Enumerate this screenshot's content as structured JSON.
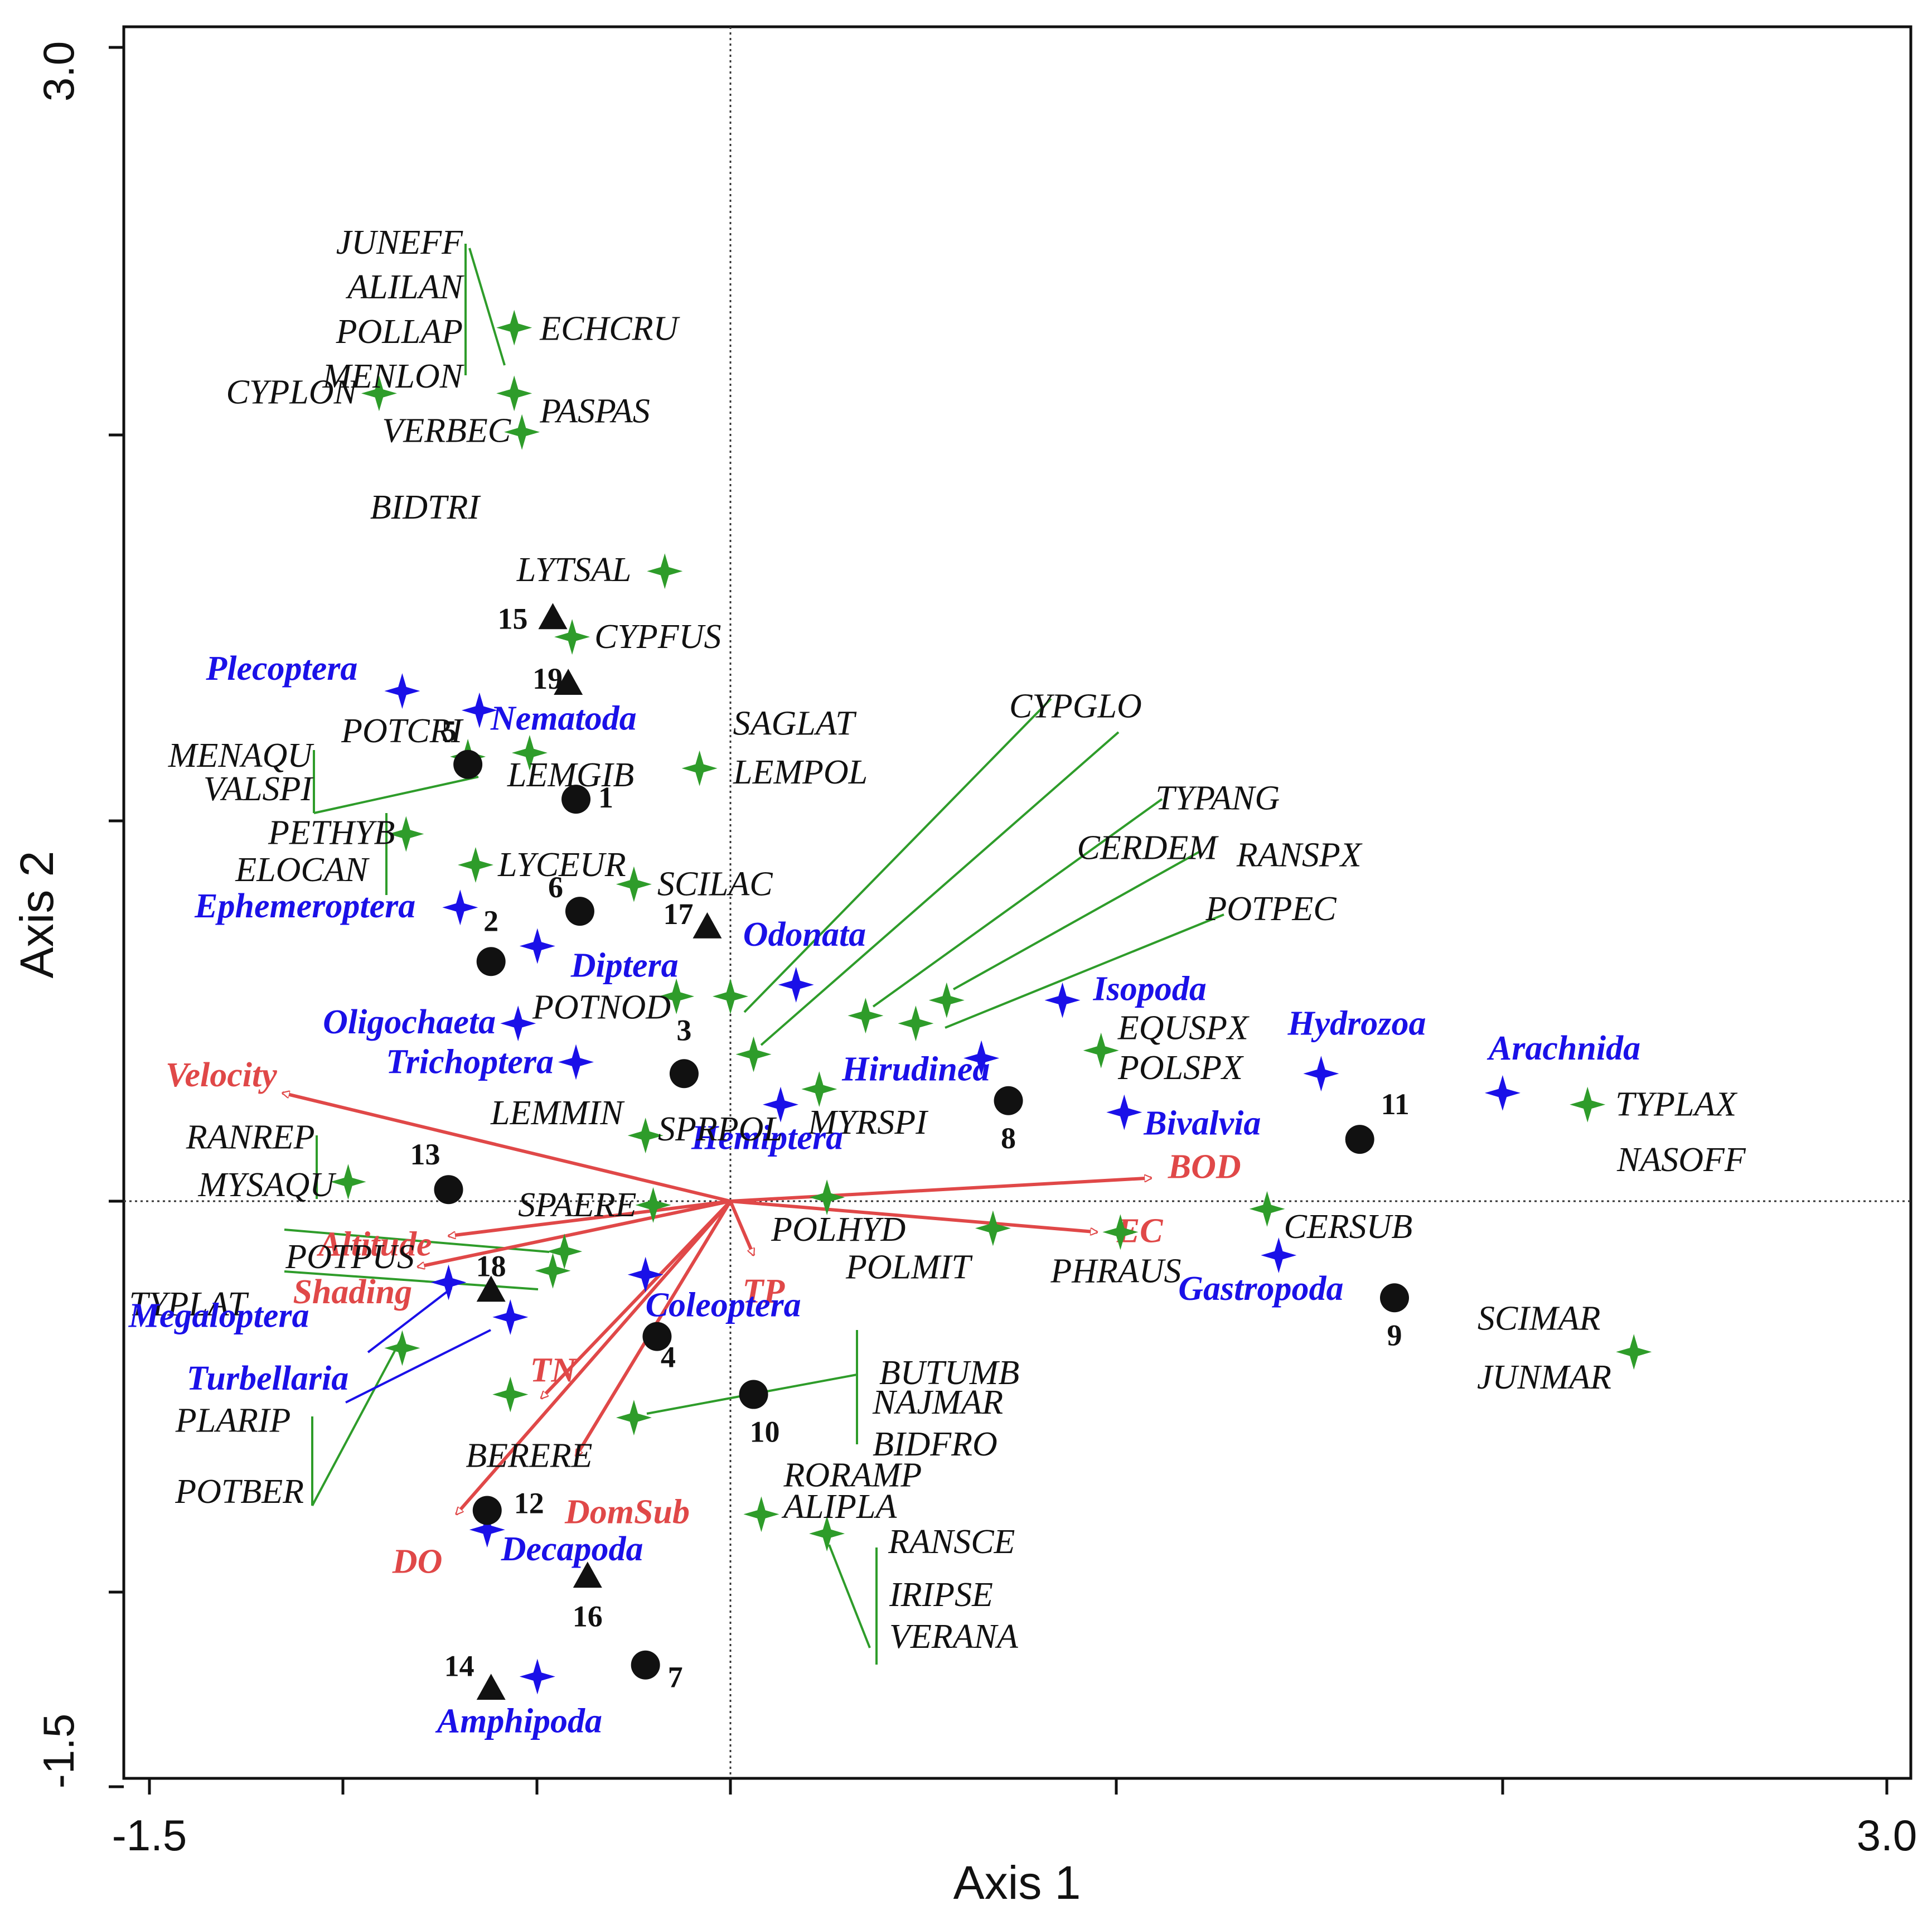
{
  "colors": {
    "plant": "#2e9c2a",
    "taxon": "#1a10e8",
    "env": "#e04848",
    "site": "#111111",
    "axis": "#111111"
  },
  "chart_data": {
    "type": "scatter",
    "xlabel": "Axis 1",
    "ylabel": "Axis 2",
    "xlim": [
      -1.5,
      3.0
    ],
    "ylim": [
      -1.5,
      3.0
    ],
    "xticklabels": [
      "-1.5",
      "3.0"
    ],
    "yticklabels": [
      "3.0",
      "-1.5"
    ],
    "reference_lines": {
      "x": 0,
      "y": 0,
      "style": "dotted"
    },
    "sites": [
      {
        "label": "1",
        "x": -0.4,
        "y": 1.04,
        "shape": "circle"
      },
      {
        "label": "2",
        "x": -0.62,
        "y": 0.62,
        "shape": "circle"
      },
      {
        "label": "3",
        "x": -0.12,
        "y": 0.33,
        "shape": "circle"
      },
      {
        "label": "4",
        "x": -0.19,
        "y": -0.35,
        "shape": "circle"
      },
      {
        "label": "5",
        "x": -0.68,
        "y": 1.13,
        "shape": "circle"
      },
      {
        "label": "6",
        "x": -0.39,
        "y": 0.75,
        "shape": "circle"
      },
      {
        "label": "7",
        "x": -0.22,
        "y": -1.2,
        "shape": "circle"
      },
      {
        "label": "8",
        "x": 0.72,
        "y": 0.26,
        "shape": "circle"
      },
      {
        "label": "9",
        "x": 1.72,
        "y": -0.25,
        "shape": "circle"
      },
      {
        "label": "10",
        "x": 0.06,
        "y": -0.5,
        "shape": "circle"
      },
      {
        "label": "11",
        "x": 1.63,
        "y": 0.16,
        "shape": "circle"
      },
      {
        "label": "12",
        "x": -0.63,
        "y": -0.8,
        "shape": "circle"
      },
      {
        "label": "13",
        "x": -0.73,
        "y": 0.03,
        "shape": "circle"
      },
      {
        "label": "14",
        "x": -0.62,
        "y": -1.26,
        "shape": "triangle"
      },
      {
        "label": "15",
        "x": -0.46,
        "y": 1.51,
        "shape": "triangle"
      },
      {
        "label": "16",
        "x": -0.37,
        "y": -0.97,
        "shape": "triangle"
      },
      {
        "label": "17",
        "x": -0.06,
        "y": 0.71,
        "shape": "triangle"
      },
      {
        "label": "18",
        "x": -0.62,
        "y": -0.23,
        "shape": "triangle"
      },
      {
        "label": "19",
        "x": -0.42,
        "y": 1.34,
        "shape": "triangle"
      }
    ],
    "taxa": [
      {
        "label": "Plecoptera",
        "x": -0.85,
        "y": 1.32
      },
      {
        "label": "Nematoda",
        "x": -0.65,
        "y": 1.27
      },
      {
        "label": "Ephemeroptera",
        "x": -0.7,
        "y": 0.76
      },
      {
        "label": "Diptera",
        "x": -0.5,
        "y": 0.66
      },
      {
        "label": "Odonata",
        "x": 0.17,
        "y": 0.56
      },
      {
        "label": "Isopoda",
        "x": 0.86,
        "y": 0.52
      },
      {
        "label": "Oligochaeta",
        "x": -0.55,
        "y": 0.46
      },
      {
        "label": "Trichoptera",
        "x": -0.4,
        "y": 0.36
      },
      {
        "label": "Hirudinea",
        "x": 0.65,
        "y": 0.37
      },
      {
        "label": "Hydrozoa",
        "x": 1.53,
        "y": 0.33
      },
      {
        "label": "Arachnida",
        "x": 2.0,
        "y": 0.28
      },
      {
        "label": "Bivalvia",
        "x": 1.02,
        "y": 0.23
      },
      {
        "label": "Hemiptera",
        "x": 0.13,
        "y": 0.25
      },
      {
        "label": "Gastropoda",
        "x": 1.42,
        "y": -0.14
      },
      {
        "label": "Coleoptera",
        "x": -0.22,
        "y": -0.19
      },
      {
        "label": "Megaloptera",
        "x": -0.73,
        "y": -0.21
      },
      {
        "label": "Turbellaria",
        "x": -0.57,
        "y": -0.3
      },
      {
        "label": "Decapoda",
        "x": -0.63,
        "y": -0.85
      },
      {
        "label": "Amphipoda",
        "x": -0.5,
        "y": -1.23
      }
    ],
    "plants": [
      {
        "label": "ECHCRU",
        "x": -0.56,
        "y": 2.26
      },
      {
        "label": "PASPAS",
        "x": -0.56,
        "y": 2.09
      },
      {
        "label": "CYPLON",
        "x": -0.91,
        "y": 2.09
      },
      {
        "label": "VERBEC",
        "x": -0.54,
        "y": 1.99
      },
      {
        "label": "LYTSAL",
        "x": -0.17,
        "y": 1.63
      },
      {
        "label": "CYPFUS",
        "x": -0.41,
        "y": 1.46
      },
      {
        "label": "POTCRI",
        "x": -0.68,
        "y": 1.15
      },
      {
        "label": "LEMGIB",
        "x": -0.52,
        "y": 1.16
      },
      {
        "label": "SAGLAT",
        "x": -0.08,
        "y": 1.12
      },
      {
        "label": "PETHYB",
        "x": -0.84,
        "y": 0.95
      },
      {
        "label": "LYCEUR",
        "x": -0.66,
        "y": 0.87
      },
      {
        "label": "SCILAC",
        "x": -0.25,
        "y": 0.82
      },
      {
        "label": "POTNOD",
        "x": -0.14,
        "y": 0.53
      },
      {
        "label": "CYPGLO",
        "x": 0.0,
        "y": 0.53
      },
      {
        "label": "TYPANG",
        "x": 0.35,
        "y": 0.48
      },
      {
        "label": "RANSPX",
        "x": 0.56,
        "y": 0.52
      },
      {
        "label": "POTPEC",
        "x": 0.48,
        "y": 0.46
      },
      {
        "label": "CERDEM",
        "x": 0.06,
        "y": 0.38
      },
      {
        "label": "EQUSPX",
        "x": 0.96,
        "y": 0.39
      },
      {
        "label": "MYRSPI",
        "x": 0.23,
        "y": 0.29
      },
      {
        "label": "TYPLAX",
        "x": 2.22,
        "y": 0.25
      },
      {
        "label": "LEMMIN",
        "x": -0.22,
        "y": 0.17
      },
      {
        "label": "RANREP",
        "x": -0.99,
        "y": 0.05
      },
      {
        "label": "SPAERE",
        "x": -0.2,
        "y": -0.01
      },
      {
        "label": "POLHYD",
        "x": 0.25,
        "y": 0.01
      },
      {
        "label": "CERSUB",
        "x": 1.39,
        "y": -0.02
      },
      {
        "label": "POLMIT",
        "x": 0.68,
        "y": -0.07
      },
      {
        "label": "PHRAUS",
        "x": 1.01,
        "y": -0.08
      },
      {
        "label": "POTPUS",
        "x": -0.43,
        "y": -0.13
      },
      {
        "label": "TYPLAT",
        "x": -0.46,
        "y": -0.18
      },
      {
        "label": "PLARIP",
        "x": -0.85,
        "y": -0.38
      },
      {
        "label": "BERERE",
        "x": -0.57,
        "y": -0.5
      },
      {
        "label": "BUTUMB",
        "x": -0.25,
        "y": -0.56
      },
      {
        "label": "SCIMAR",
        "x": 2.34,
        "y": -0.39
      },
      {
        "label": "RORAMP",
        "x": 0.08,
        "y": -0.81
      },
      {
        "label": "RANSCE",
        "x": 0.25,
        "y": -0.86
      }
    ],
    "env_vectors": [
      {
        "label": "Velocity",
        "x": -1.16,
        "y": 0.28
      },
      {
        "label": "BOD",
        "x": 1.09,
        "y": 0.06
      },
      {
        "label": "EC",
        "x": 0.95,
        "y": -0.08
      },
      {
        "label": "TP",
        "x": 0.06,
        "y": -0.14
      },
      {
        "label": "Altitude",
        "x": -0.73,
        "y": -0.09
      },
      {
        "label": "Shading",
        "x": -0.81,
        "y": -0.17
      },
      {
        "label": "TN",
        "x": -0.49,
        "y": -0.51
      },
      {
        "label": "DomSub",
        "x": -0.4,
        "y": -0.66
      },
      {
        "label": "DO",
        "x": -0.71,
        "y": -0.81
      }
    ],
    "label_groups": [
      [
        "JUNEFF",
        "ALILAN",
        "POLLAP",
        "MENLON"
      ],
      [
        "BIDTRI"
      ],
      [
        "MENAQU",
        "VALSPI"
      ],
      [
        "ELOCAN"
      ],
      [
        "LEMPOL"
      ],
      [
        "POLSPX"
      ],
      [
        "NASOFF"
      ],
      [
        "MYSAQU"
      ],
      [
        "SPRPOL"
      ],
      [
        "POTBER"
      ],
      [
        "NAJMAR",
        "BIDFRO"
      ],
      [
        "ALIPLA"
      ],
      [
        "IRIPSE",
        "VERANA"
      ],
      [
        "JUNMAR"
      ]
    ]
  }
}
